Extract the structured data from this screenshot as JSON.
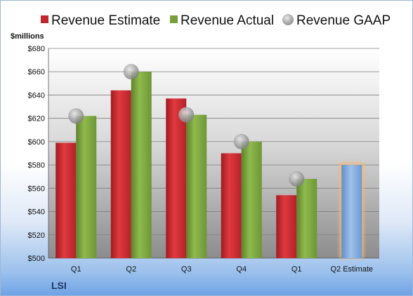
{
  "chart_data": {
    "type": "bar",
    "company": "LSI",
    "ylabel": "$millions",
    "ylim": [
      500,
      680
    ],
    "yticks": [
      500,
      520,
      540,
      560,
      580,
      600,
      620,
      640,
      660,
      680
    ],
    "ytick_labels": [
      "$500",
      "$520",
      "$540",
      "$560",
      "$580",
      "$600",
      "$620",
      "$640",
      "$660",
      "$680"
    ],
    "categories": [
      "Q1",
      "Q2",
      "Q3",
      "Q4",
      "Q1",
      "Q2 Estimate"
    ],
    "series": [
      {
        "name": "Revenue Estimate",
        "type": "bar",
        "color": "#c0262c",
        "values": [
          599,
          644,
          637,
          590,
          554,
          null
        ]
      },
      {
        "name": "Revenue Actual",
        "type": "bar",
        "color": "#77a03a",
        "values": [
          622,
          660,
          623,
          600,
          568,
          null
        ]
      },
      {
        "name": "Revenue GAAP",
        "type": "marker",
        "color": "#a6a6a6",
        "values": [
          622,
          660,
          623,
          600,
          568,
          null
        ]
      },
      {
        "name": "Q2 Estimate",
        "type": "bar",
        "color": "#7ea7d8",
        "highlight": "#f5b971",
        "values": [
          null,
          null,
          null,
          null,
          null,
          580
        ]
      }
    ],
    "legend": "top",
    "grid": true,
    "plot_background": "gradient-gray"
  }
}
